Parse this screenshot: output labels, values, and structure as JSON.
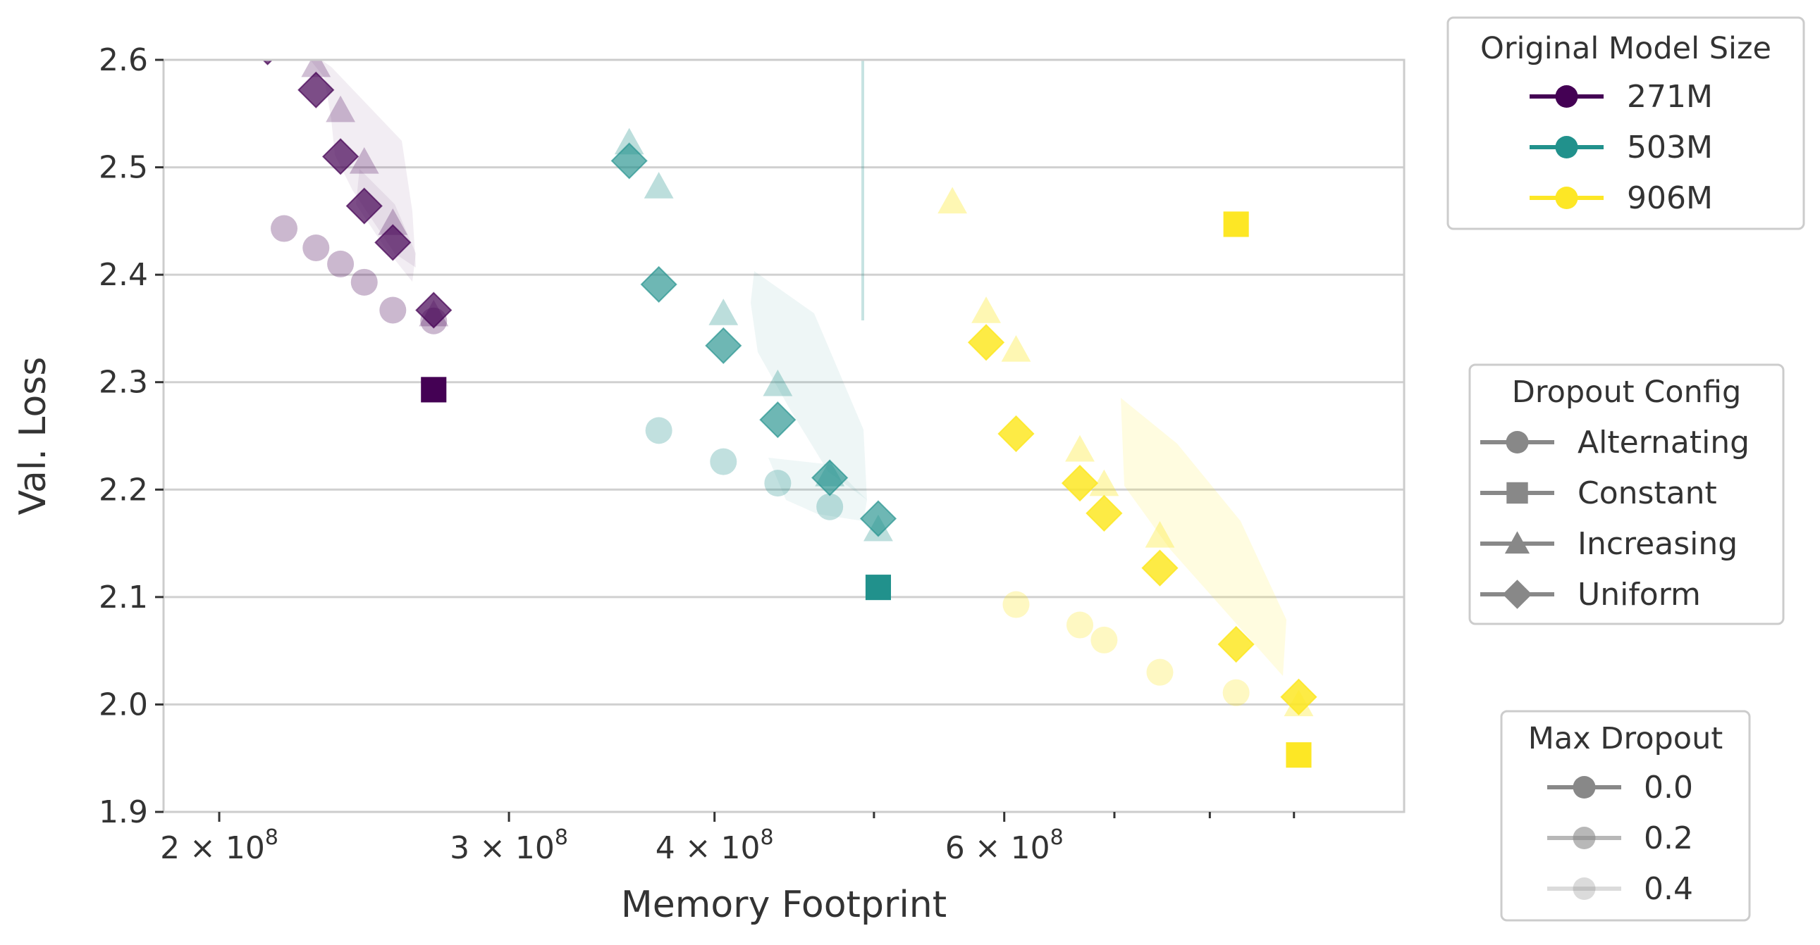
{
  "chart_data": {
    "type": "scatter",
    "xlabel": "Memory Footprint",
    "ylabel": "Val. Loss",
    "x_scale": "log",
    "xlim": [
      185000000,
      1050000000
    ],
    "ylim": [
      1.9,
      2.6
    ],
    "x_ticks": [
      200000000,
      300000000,
      400000000,
      600000000
    ],
    "x_tick_labels": [
      "2 × 10",
      "3 × 10",
      "4 × 10",
      "6 × 10"
    ],
    "x_tick_exponent": "8",
    "x_minor_ticks": [
      500000000,
      700000000,
      800000000,
      900000000
    ],
    "y_ticks": [
      1.9,
      2.0,
      2.1,
      2.2,
      2.3,
      2.4,
      2.5,
      2.6
    ],
    "y_tick_labels": [
      "1.9",
      "2.0",
      "2.1",
      "2.2",
      "2.3",
      "2.4",
      "2.5",
      "2.6"
    ],
    "grid": "horizontal",
    "legends": [
      {
        "title": "Original Model Size",
        "entries": [
          {
            "label": "271M",
            "color": "#440154",
            "marker": "circle",
            "alpha": 1
          },
          {
            "label": "503M",
            "color": "#21918c",
            "marker": "circle",
            "alpha": 1
          },
          {
            "label": "906M",
            "color": "#fde725",
            "marker": "circle",
            "alpha": 1
          }
        ]
      },
      {
        "title": "Dropout Config",
        "entries": [
          {
            "label": "Alternating",
            "color": "#888888",
            "marker": "circle",
            "alpha": 1
          },
          {
            "label": "Constant",
            "color": "#888888",
            "marker": "square",
            "alpha": 1
          },
          {
            "label": "Increasing",
            "color": "#888888",
            "marker": "triangle",
            "alpha": 1
          },
          {
            "label": "Uniform",
            "color": "#888888",
            "marker": "diamond",
            "alpha": 1
          }
        ]
      },
      {
        "title": "Max Dropout",
        "entries": [
          {
            "label": "0.0",
            "color": "#888888",
            "marker": "circle",
            "alpha": 1
          },
          {
            "label": "0.2",
            "color": "#888888",
            "marker": "circle",
            "alpha": 0.6
          },
          {
            "label": "0.4",
            "color": "#888888",
            "marker": "circle",
            "alpha": 0.3
          }
        ]
      }
    ],
    "series": [
      {
        "size": "271M",
        "config": "Alternating",
        "max_dropout": 0.4,
        "color": "#440154",
        "marker": "circle",
        "alpha": 0.28,
        "x": [
          219000000,
          229000000,
          237000000,
          245000000,
          255000000,
          270000000
        ],
        "y": [
          2.443,
          2.425,
          2.41,
          2.393,
          2.367,
          2.357
        ]
      },
      {
        "size": "271M",
        "config": "Increasing",
        "max_dropout": 0.2,
        "color": "#440154",
        "marker": "triangle",
        "alpha": 0.25,
        "x": [
          214000000,
          229000000,
          237000000,
          245000000,
          255000000,
          270000000
        ],
        "y": [
          2.612,
          2.595,
          2.553,
          2.505,
          2.448,
          2.363
        ]
      },
      {
        "size": "271M",
        "config": "Uniform",
        "max_dropout": 0.2,
        "color": "#440154",
        "marker": "diamond",
        "alpha": 0.7,
        "x": [
          214000000,
          229000000,
          237000000,
          245000000,
          255000000,
          270000000
        ],
        "y": [
          2.612,
          2.572,
          2.51,
          2.464,
          2.43,
          2.367
        ]
      },
      {
        "size": "271M",
        "config": "Constant",
        "max_dropout": 0.0,
        "color": "#440154",
        "marker": "square",
        "alpha": 1,
        "x": [
          270000000
        ],
        "y": [
          2.293
        ]
      },
      {
        "size": "503M",
        "config": "Alternating",
        "max_dropout": 0.4,
        "color": "#21918c",
        "marker": "circle",
        "alpha": 0.28,
        "x": [
          370000000,
          405000000,
          437000000,
          470000000
        ],
        "y": [
          2.255,
          2.226,
          2.206,
          2.184
        ]
      },
      {
        "size": "503M",
        "config": "Increasing",
        "max_dropout": 0.2,
        "color": "#21918c",
        "marker": "triangle",
        "alpha": 0.3,
        "x": [
          355000000,
          370000000,
          405000000,
          437000000,
          470000000,
          503000000
        ],
        "y": [
          2.523,
          2.482,
          2.364,
          2.298,
          2.214,
          2.163
        ]
      },
      {
        "size": "503M",
        "config": "Uniform",
        "max_dropout": 0.2,
        "color": "#21918c",
        "marker": "diamond",
        "alpha": 0.65,
        "x": [
          355000000,
          370000000,
          405000000,
          437000000,
          470000000,
          503000000
        ],
        "y": [
          2.506,
          2.391,
          2.334,
          2.265,
          2.211,
          2.173
        ]
      },
      {
        "size": "503M",
        "config": "Constant",
        "max_dropout": 0.0,
        "color": "#21918c",
        "marker": "square",
        "alpha": 1,
        "x": [
          503000000
        ],
        "y": [
          2.109
        ]
      },
      {
        "size": "906M",
        "config": "Alternating",
        "max_dropout": 0.4,
        "color": "#fde725",
        "marker": "circle",
        "alpha": 0.28,
        "x": [
          610000000,
          667000000,
          690000000,
          746000000,
          830000000
        ],
        "y": [
          2.093,
          2.074,
          2.06,
          2.03,
          2.011
        ]
      },
      {
        "size": "906M",
        "config": "Increasing",
        "max_dropout": 0.2,
        "color": "#fde725",
        "marker": "triangle",
        "alpha": 0.35,
        "x": [
          558000000,
          585000000,
          610000000,
          667000000,
          690000000,
          746000000,
          906000000
        ],
        "y": [
          2.468,
          2.366,
          2.33,
          2.237,
          2.205,
          2.157,
          2.0
        ]
      },
      {
        "size": "906M",
        "config": "Uniform",
        "max_dropout": 0.2,
        "color": "#fde725",
        "marker": "diamond",
        "alpha": 0.85,
        "x": [
          585000000,
          610000000,
          667000000,
          690000000,
          746000000,
          830000000,
          906000000
        ],
        "y": [
          2.337,
          2.252,
          2.206,
          2.178,
          2.127,
          2.056,
          2.007
        ]
      },
      {
        "size": "906M",
        "config": "Constant",
        "max_dropout": 0.0,
        "color": "#fde725",
        "marker": "square",
        "alpha": 1,
        "x": [
          830000000,
          906000000
        ],
        "y": [
          2.447,
          1.953
        ]
      }
    ]
  }
}
